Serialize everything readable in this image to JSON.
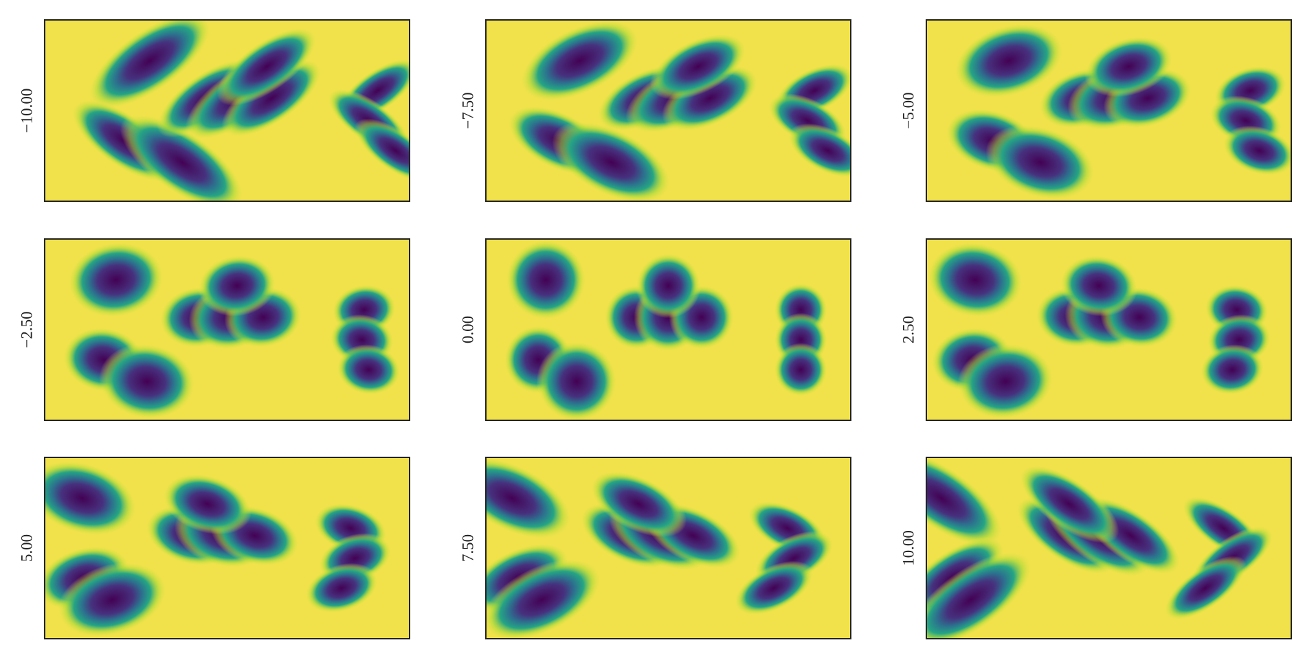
{
  "panels": [
    {
      "label": "−10.00"
    },
    {
      "label": "−7.50"
    },
    {
      "label": "−5.00"
    },
    {
      "label": "−2.50"
    },
    {
      "label": "0.00"
    },
    {
      "label": "2.50"
    },
    {
      "label": "5.00"
    },
    {
      "label": "7.50"
    },
    {
      "label": "10.00"
    }
  ]
}
